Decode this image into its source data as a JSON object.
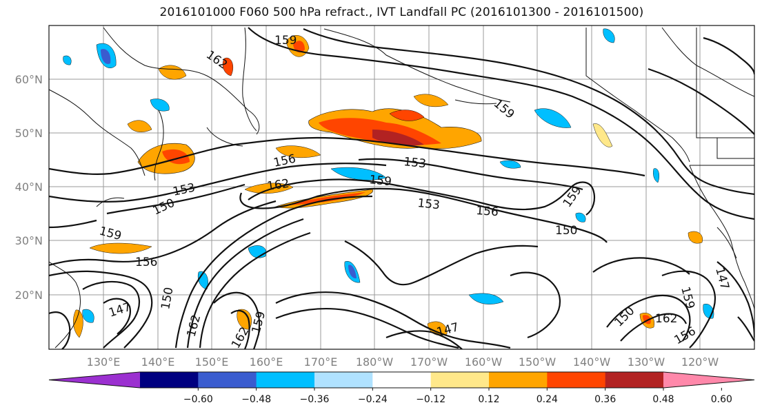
{
  "title": "2016101000 F060 500 hPa refract., IVT Landfall PC (2016101300 - 2016101500)",
  "latitude_labels": [
    "60°N",
    "50°N",
    "40°N",
    "30°N",
    "20°N"
  ],
  "longitude_labels": [
    "130°E",
    "140°E",
    "150°E",
    "160°E",
    "170°E",
    "180°W",
    "170°W",
    "160°W",
    "150°W",
    "140°W",
    "130°W",
    "120°W"
  ],
  "contour_labels": [
    "159",
    "162",
    "159",
    "156",
    "153",
    "159",
    "153",
    "156",
    "150",
    "159",
    "162",
    "153",
    "150",
    "159",
    "156",
    "147",
    "150",
    "162",
    "159",
    "162",
    "147",
    "150",
    "162",
    "159",
    "147",
    "156"
  ],
  "colorbar": {
    "tick_labels": [
      "−0.60",
      "−0.48",
      "−0.36",
      "−0.24",
      "−0.12",
      "0.12",
      "0.24",
      "0.36",
      "0.48",
      "0.60"
    ],
    "colors": [
      "#9b30d0",
      "#000080",
      "#3a5ccf",
      "#00bfff",
      "#b0e2ff",
      "#ffffff",
      "#ffe88a",
      "#ffa500",
      "#ff4500",
      "#b22222",
      "#ff88aa"
    ]
  },
  "field_colors": {
    "negative_light": "#b0e2ff",
    "negative": "#00bfff",
    "negative_strong": "#3a5ccf",
    "negative_extreme": "#9b30d0",
    "positive_light": "#ffe88a",
    "positive": "#ffa500",
    "positive_strong": "#ff4500",
    "positive_extreme": "#b22222"
  }
}
